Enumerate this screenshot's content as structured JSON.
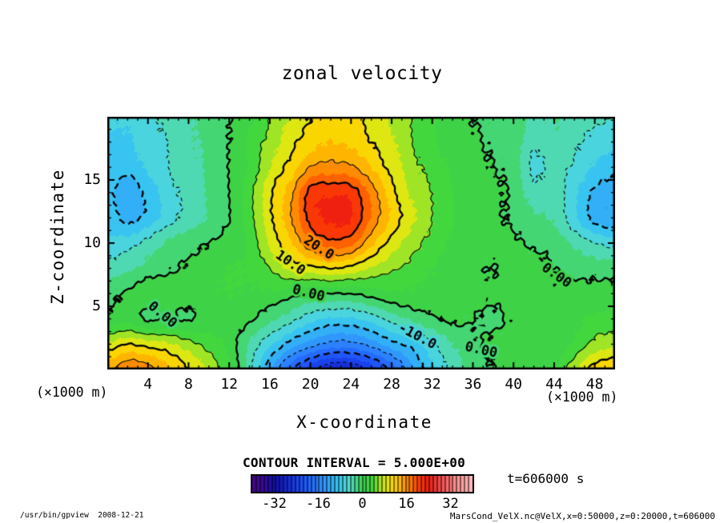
{
  "window": {
    "footer_left": "/usr/bin/gpview  2008-12-21",
    "footer_right": "MarsCond_VelX.nc@VelX,x=0:50000,z=0:20000,t=606000"
  },
  "chart_data": {
    "type": "heatmap",
    "subtype": "filled-contour",
    "title": "zonal velocity",
    "xlabel": "X-coordinate",
    "ylabel": "Z-coordinate",
    "x_unit_label": "(×1000 m)",
    "z_unit_label": "(×1000 m)",
    "xlim": [
      0,
      50
    ],
    "zlim": [
      0,
      20
    ],
    "x_major_ticks": [
      4,
      8,
      12,
      16,
      20,
      24,
      28,
      32,
      36,
      40,
      44,
      48
    ],
    "x_minor_step": 1,
    "z_major_ticks": [
      5,
      10,
      15
    ],
    "z_minor_step": 1,
    "contour_interval_text": "CONTOUR INTERVAL = 5.000E+00",
    "contour_interval": 5,
    "time_label": "t=606000 s",
    "levels": [
      -25,
      -20,
      -15,
      -10,
      -5,
      0,
      5,
      10,
      15,
      20
    ],
    "contour_labels": [
      {
        "text": "20.0",
        "x": 20.8,
        "z": 9.6,
        "angle": 33
      },
      {
        "text": "10.0",
        "x": 18.0,
        "z": 8.4,
        "angle": 35
      },
      {
        "text": "0.00",
        "x": 19.8,
        "z": 6.0,
        "angle": 14
      },
      {
        "text": "0.00",
        "x": 5.4,
        "z": 4.3,
        "angle": 40
      },
      {
        "text": "0.00",
        "x": 44.2,
        "z": 7.4,
        "angle": 35
      },
      {
        "text": "-10.0",
        "x": 30.5,
        "z": 2.6,
        "angle": 28
      },
      {
        "text": "0.00",
        "x": 36.8,
        "z": 1.5,
        "angle": 12
      }
    ],
    "colorbar": {
      "min": -40,
      "max": 40,
      "ticks": [
        -32,
        -16,
        0,
        16,
        32
      ],
      "stripes": 56
    },
    "fill_band": 2.5,
    "colormap_stops": [
      [
        -40,
        "#43067e"
      ],
      [
        -36,
        "#3a0a9b"
      ],
      [
        -32,
        "#1211ae"
      ],
      [
        -30,
        "#1216b9"
      ],
      [
        -25,
        "#1739e6"
      ],
      [
        -20,
        "#2160ff"
      ],
      [
        -15,
        "#2f8cff"
      ],
      [
        -10,
        "#33bbf5"
      ],
      [
        -8,
        "#3ccaee"
      ],
      [
        -5,
        "#55dcd2"
      ],
      [
        -3,
        "#4cd8a0"
      ],
      [
        -1,
        "#45d66e"
      ],
      [
        0,
        "#3cd24b"
      ],
      [
        4,
        "#44d83e"
      ],
      [
        6,
        "#9ae428"
      ],
      [
        8,
        "#cfe91c"
      ],
      [
        10,
        "#f7e400"
      ],
      [
        13,
        "#ffc400"
      ],
      [
        15,
        "#ff9d00"
      ],
      [
        18,
        "#ff7300"
      ],
      [
        20,
        "#ff4400"
      ],
      [
        24,
        "#ee1e12"
      ],
      [
        28,
        "#f64848"
      ],
      [
        34,
        "#ff9090"
      ],
      [
        40,
        "#ffbcbc"
      ]
    ],
    "grid": {
      "x": [
        0,
        2,
        4,
        6,
        8,
        10,
        12,
        14,
        16,
        18,
        20,
        22,
        24,
        26,
        28,
        30,
        32,
        34,
        36,
        38,
        40,
        42,
        44,
        46,
        48,
        50
      ],
      "z": [
        0,
        2,
        4,
        6,
        8,
        10,
        12,
        14,
        16,
        18,
        20
      ],
      "values": [
        [
          14,
          17,
          16,
          13,
          10,
          7,
          3,
          -4,
          -12,
          -19,
          -24,
          -27,
          -27,
          -24,
          -19,
          -13,
          -8,
          -4,
          -1.5,
          0,
          0.5,
          1,
          2,
          7,
          11,
          12
        ],
        [
          8,
          10,
          9,
          8,
          6,
          4,
          1.5,
          -3,
          -7,
          -11,
          -14,
          -16,
          -16,
          -14,
          -11,
          -9,
          -5.5,
          -2.5,
          -0.5,
          0.5,
          1,
          1,
          1,
          3,
          6,
          7
        ],
        [
          1,
          1.5,
          -0.3,
          0.4,
          -0.3,
          1.2,
          1.5,
          0.5,
          -2,
          -4,
          -6.5,
          -8,
          -8,
          -6.5,
          -4,
          -2,
          -0.5,
          0.5,
          0,
          -0.5,
          0.5,
          1,
          1.5,
          2,
          3,
          3
        ],
        [
          -1,
          0.5,
          2,
          2,
          1.5,
          2,
          2.5,
          2,
          2,
          1,
          0,
          0,
          0,
          1,
          2,
          2,
          1.5,
          1,
          1,
          0.5,
          1,
          1,
          0.5,
          1,
          1,
          1
        ],
        [
          -4,
          -3,
          -1.5,
          -0.5,
          0.5,
          1.5,
          2.5,
          3,
          5,
          8,
          9,
          10,
          9,
          7,
          5.5,
          4,
          2.5,
          1,
          0.5,
          0,
          1,
          1,
          0,
          -1,
          -1,
          -1
        ],
        [
          -7,
          -6,
          -4,
          -2,
          -1,
          0,
          1,
          3,
          8,
          12,
          17,
          19,
          18,
          13,
          9,
          6,
          4,
          2,
          1,
          1,
          0.5,
          -0.5,
          -1,
          -3,
          -5,
          -6
        ],
        [
          -8,
          -11,
          -9,
          -6,
          -4,
          -2,
          0,
          4,
          9.5,
          14.5,
          21,
          23,
          22.5,
          17,
          12,
          8,
          5,
          2.5,
          1.5,
          0.5,
          -0.5,
          -2,
          -3,
          -7,
          -11,
          -12
        ],
        [
          -9,
          -12,
          -9,
          -6,
          -4,
          -2,
          0,
          4,
          9.5,
          14,
          21,
          22,
          21.5,
          16.5,
          11,
          7,
          5,
          2.5,
          1.5,
          0.5,
          -0.5,
          -4,
          -3.5,
          -7,
          -10.5,
          -11.5
        ],
        [
          -8,
          -9,
          -7,
          -5,
          -3.5,
          -2,
          0,
          3,
          7.5,
          11,
          15,
          16,
          15.5,
          12.5,
          9,
          6,
          4,
          2,
          1,
          0,
          -1,
          -5.5,
          -4,
          -5.5,
          -8,
          -9
        ],
        [
          -8,
          -8,
          -6,
          -5,
          -3,
          -2,
          0,
          3,
          6,
          9,
          11.5,
          12.5,
          12,
          10,
          8,
          5,
          3,
          1,
          0.5,
          -0.5,
          -1,
          -4.5,
          -3,
          -4.5,
          -6,
          -7
        ],
        [
          -7,
          -7,
          -6,
          -4,
          -3,
          -1,
          0,
          2,
          5,
          8,
          10,
          11,
          11,
          9,
          7,
          5,
          3,
          1,
          0,
          -0.5,
          -1,
          -3,
          -2.5,
          -3.5,
          -4.5,
          -5
        ]
      ]
    }
  }
}
